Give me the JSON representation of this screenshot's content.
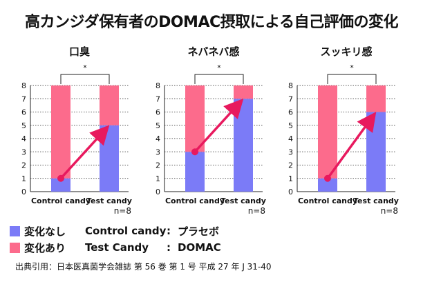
{
  "title": "高カンジダ保有者のDOMAC摂取による自己評価の変化",
  "colors": {
    "bottom": "#7b7bf7",
    "top": "#fc6b8c",
    "arrow": "#e8195e",
    "grid": "#555555"
  },
  "chart_data": [
    {
      "type": "bar",
      "stacked": true,
      "title": "口臭",
      "categories": [
        "Control candy",
        "Test candy"
      ],
      "series": [
        {
          "name": "変化なし",
          "values": [
            1,
            5
          ]
        },
        {
          "name": "変化あり",
          "values": [
            7,
            3
          ]
        }
      ],
      "ylim": [
        0,
        8
      ],
      "yticks": [
        "0",
        "1",
        "2",
        "3",
        "4",
        "5",
        "6",
        "7",
        "8"
      ],
      "significance": "*",
      "n_label": "n=8",
      "arrow": {
        "from": 1,
        "to": 5
      },
      "grid": true
    },
    {
      "type": "bar",
      "stacked": true,
      "title": "ネバネバ感",
      "categories": [
        "Control candy",
        "Test candy"
      ],
      "series": [
        {
          "name": "変化なし",
          "values": [
            3,
            7
          ]
        },
        {
          "name": "変化あり",
          "values": [
            5,
            1
          ]
        }
      ],
      "ylim": [
        0,
        8
      ],
      "yticks": [
        "0",
        "1",
        "2",
        "3",
        "4",
        "5",
        "6",
        "7",
        "8"
      ],
      "significance": "*",
      "n_label": "n=8",
      "arrow": {
        "from": 3,
        "to": 7
      },
      "grid": true
    },
    {
      "type": "bar",
      "stacked": true,
      "title": "スッキリ感",
      "categories": [
        "Control candy",
        "Test candy"
      ],
      "series": [
        {
          "name": "変化なし",
          "values": [
            1,
            6
          ]
        },
        {
          "name": "変化あり",
          "values": [
            7,
            2
          ]
        }
      ],
      "ylim": [
        0,
        8
      ],
      "yticks": [
        "0",
        "1",
        "2",
        "3",
        "4",
        "5",
        "6",
        "7",
        "8"
      ],
      "significance": "*",
      "n_label": "n=8",
      "arrow": {
        "from": 1,
        "to": 6
      },
      "grid": true
    }
  ],
  "legend": [
    {
      "label": "変化なし",
      "group": "Control candy",
      "colon": ":",
      "value": "プラセボ",
      "color": "#7b7bf7"
    },
    {
      "label": "変化あり",
      "group": "Test Candy",
      "colon": ":",
      "value": "DOMAC",
      "color": "#fc6b8c"
    }
  ],
  "citation": "出典引用：日本医真菌学会雑誌 第 56 巻 第 1 号 平成 27 年 J 31-40"
}
